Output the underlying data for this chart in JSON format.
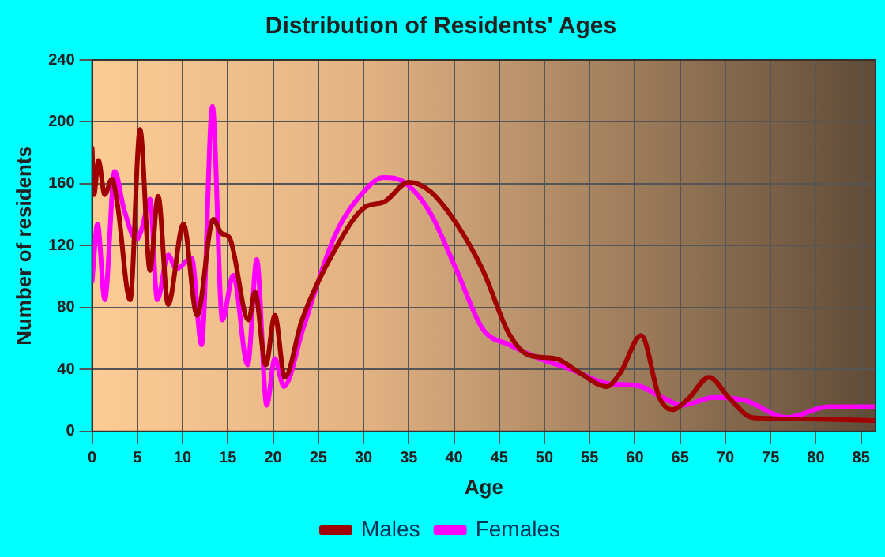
{
  "chart_data": {
    "type": "line",
    "title": "Distribution of Residents' Ages",
    "xlabel": "Age",
    "ylabel": "Number of residents",
    "xlim": [
      0,
      86.6
    ],
    "xticks": [
      0,
      5,
      10,
      15,
      20,
      25,
      30,
      35,
      40,
      45,
      50,
      55,
      60,
      65,
      70,
      75,
      80,
      85
    ],
    "ylim": [
      0,
      240
    ],
    "yticks": [
      0,
      40,
      80,
      120,
      160,
      200,
      240
    ],
    "grid": true,
    "legend": "bottom",
    "marker": "none",
    "line_style": "solid",
    "series": [
      {
        "name": "Males",
        "color": "#a00000",
        "x": [
          0,
          0.2,
          0.7,
          1.4,
          2.2,
          2.8,
          4.2,
          5.3,
          6.4,
          7.3,
          8.4,
          10.1,
          11.6,
          13.4,
          14.3,
          15.2,
          17.3,
          18,
          19.2,
          20.2,
          21.3,
          23.2,
          26.8,
          30.2,
          32.2,
          35,
          37.4,
          40.3,
          43.2,
          46.1,
          48.4,
          51.3,
          53.6,
          56.9,
          58.4,
          60.7,
          62.7,
          64.1,
          65.9,
          68.2,
          70.5,
          73,
          78.5,
          86.6
        ],
        "values": [
          183,
          153,
          175,
          153,
          163,
          147,
          85,
          195,
          104,
          152,
          82,
          134,
          75,
          137,
          128,
          125,
          72,
          90,
          43,
          75,
          35,
          72,
          117,
          145,
          148,
          161,
          155,
          134,
          104,
          63,
          49,
          47,
          39,
          29,
          38,
          62,
          22,
          14,
          21,
          35,
          21,
          9,
          8,
          7
        ]
      },
      {
        "name": "Females",
        "color": "#ff00ff",
        "x": [
          0,
          0.6,
          1.4,
          2.5,
          3.5,
          4.9,
          5.5,
          6.4,
          7.2,
          8.4,
          9.3,
          11,
          12.1,
          13.3,
          14.4,
          15.6,
          17.2,
          18.2,
          19.3,
          20.2,
          21.2,
          23.3,
          26.8,
          30.2,
          32.2,
          34.5,
          37.4,
          40.3,
          43.2,
          46.1,
          49.5,
          53,
          56.9,
          59.9,
          60.7,
          63,
          65.3,
          68.7,
          72.2,
          76.8,
          81.4,
          86.6
        ],
        "values": [
          97,
          134,
          85,
          168,
          144,
          124,
          131,
          150,
          85,
          114,
          105,
          112,
          56,
          210,
          72,
          101,
          43,
          111,
          17,
          47,
          29,
          66,
          126,
          156,
          164,
          161,
          141,
          104,
          66,
          56,
          47,
          40,
          31,
          30,
          29,
          22,
          17,
          22,
          20,
          9,
          16,
          16
        ]
      }
    ]
  }
}
